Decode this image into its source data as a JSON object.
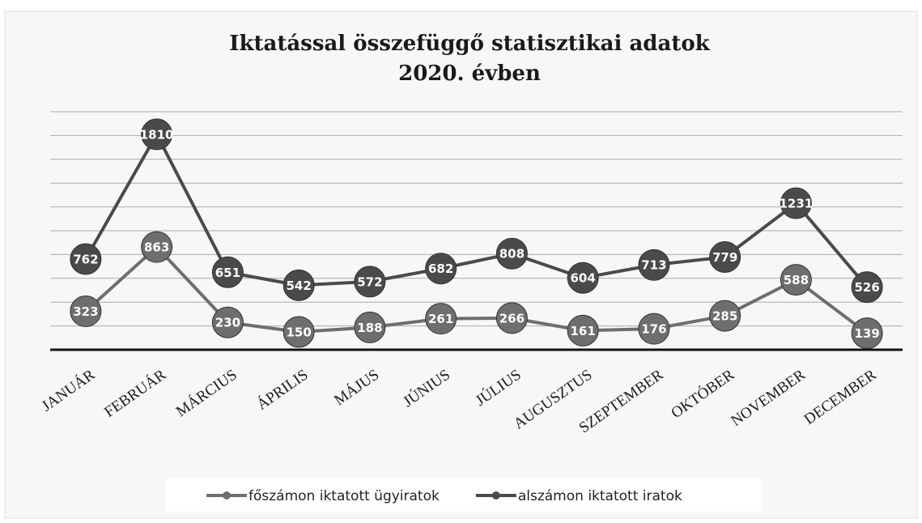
{
  "chart_data": {
    "type": "line",
    "title": [
      "Iktatással összefüggő statisztikai adatok",
      "2020. évben"
    ],
    "categories": [
      "JANUÁR",
      "FEBRUÁR",
      "MÁRCIUS",
      "ÁPRILIS",
      "MÁJUS",
      "JÚNIUS",
      "JÚLIUS",
      "AUGUSZTUS",
      "SZEPTEMBER",
      "OKTÓBER",
      "NOVEMBER",
      "DECEMBER"
    ],
    "series": [
      {
        "name": "főszámon iktatott ügyiratok",
        "color": "#6e6e6e",
        "values": [
          323,
          863,
          230,
          150,
          188,
          261,
          266,
          161,
          176,
          285,
          588,
          139
        ]
      },
      {
        "name": "alszámon iktatott iratok",
        "color": "#4a4a4a",
        "values": [
          762,
          1810,
          651,
          542,
          572,
          682,
          808,
          604,
          713,
          779,
          1231,
          526
        ]
      }
    ],
    "ylim": [
      0,
      2000
    ],
    "yticks": [
      0,
      200,
      400,
      600,
      800,
      1000,
      1200,
      1400,
      1600,
      1800,
      2000
    ],
    "grid": true,
    "legend": "bottom"
  }
}
